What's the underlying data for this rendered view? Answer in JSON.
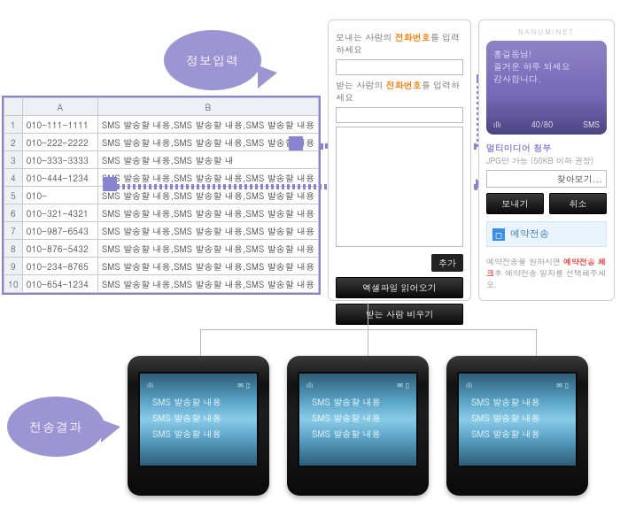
{
  "labels": {
    "info": "정보입력",
    "result": "전송결과"
  },
  "sheet": {
    "cols": [
      "A",
      "B"
    ],
    "rows": [
      {
        "n": 1,
        "a": "010-111-1111",
        "b": "SMS 발송할 내용,SMS 발송할 내용,SMS 발송할 내용"
      },
      {
        "n": 2,
        "a": "010-222-2222",
        "b": "SMS 발송할 내용,SMS 발송할 내용,SMS 발송할 내용"
      },
      {
        "n": 3,
        "a": "010-333-3333",
        "b": "SMS 발송할 내용,SMS 발송할 내"
      },
      {
        "n": 4,
        "a": "010-444-1234",
        "b": "SMS 발송할 내용,SMS 발송할 내용,SMS 발송할 내용"
      },
      {
        "n": 5,
        "a": "010-",
        "b": "SMS 발송할 내용,SMS 발송할 내용,SMS 발송할 내용"
      },
      {
        "n": 6,
        "a": "010-321-4321",
        "b": "SMS 발송할 내용,SMS 발송할 내용,SMS 발송할 내용"
      },
      {
        "n": 7,
        "a": "010-987-6543",
        "b": "SMS 발송할 내용,SMS 발송할 내용,SMS 발송할 내용"
      },
      {
        "n": 8,
        "a": "010-876-5432",
        "b": "SMS 발송할 내용,SMS 발송할 내용,SMS 발송할 내용"
      },
      {
        "n": 9,
        "a": "010-234-8765",
        "b": "SMS 발송할 내용,SMS 발송할 내용,SMS 발송할 내용"
      },
      {
        "n": 10,
        "a": "010-654-1234",
        "b": "SMS 발송할 내용,SMS 발송할 내용,SMS 발송할 내용"
      }
    ]
  },
  "mid": {
    "sender_lbl_pre": "보내는 사람의 ",
    "sender_lbl_em": "전화번호",
    "sender_lbl_post": "를 입력하세요",
    "recv_lbl_pre": "받는 사람의 ",
    "recv_lbl_em": "전화번호",
    "recv_lbl_post": "를 입력하세요",
    "add": "추가",
    "excel": "엑셀파일 읽어오기",
    "clear": "받는 사람 비우기"
  },
  "right": {
    "brand": "NANUMINET",
    "msg_l1": "홍길동님!",
    "msg_l2": "즐거운 하루 되세요",
    "msg_l3": "감사합니다.",
    "counter": "40/80",
    "mode": "SMS",
    "sig": "ıllı",
    "mm_title": "멀티미디어 첨부",
    "mm_sub": "JPG만 가능 (50KB 이하 권장)",
    "browse": "찾아보기...",
    "send": "보내기",
    "cancel": "취소",
    "sched": "예약전송",
    "note_pre": "예약전송을 원하시면 ",
    "note_em": "예약전송 체크",
    "note_post": "후 예약전송 일자를 선택해주세요."
  },
  "phone_lines": [
    "SMS 발송할 내용",
    "SMS 발송할 내용",
    "SMS 발송할 내용"
  ],
  "colors": {
    "bubble": "#9b95d4",
    "accent": "#8a84d0",
    "dark": "#1a1a1a"
  }
}
